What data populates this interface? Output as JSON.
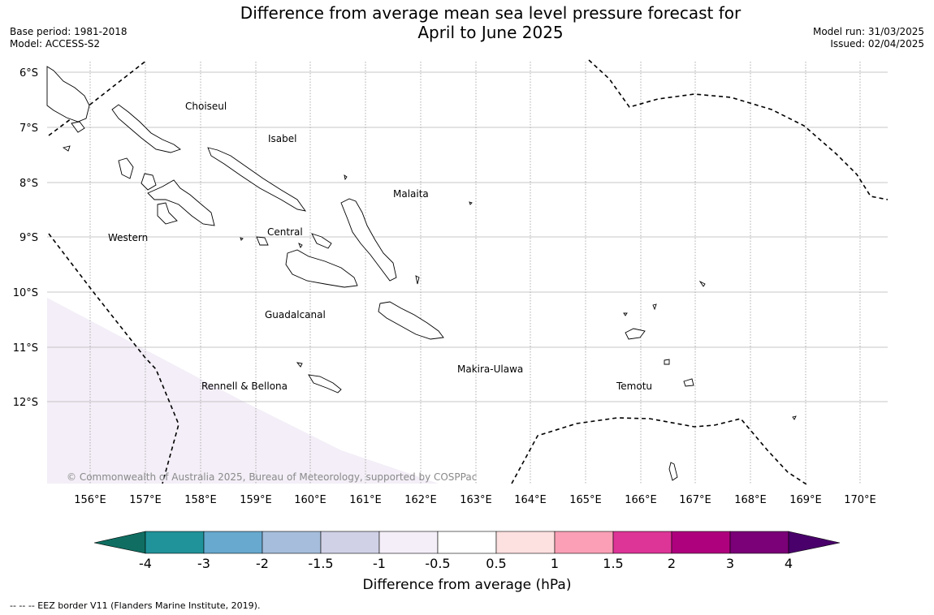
{
  "title_line1": "Difference from average mean sea level pressure forecast for",
  "title_line2": "April to June 2025",
  "base_period": "Base period: 1981-2018",
  "model": "Model: ACCESS-S2",
  "model_run": "Model run: 31/03/2025",
  "issued": "Issued: 02/04/2025",
  "copyright": "© Commonwealth of Australia 2025, Bureau of Meteorology, supported by COSPPac",
  "footnote": "-- -- -- EEZ border V11 (Flanders Marine Institute, 2019).",
  "map": {
    "lon_labels": [
      "156°E",
      "157°E",
      "158°E",
      "159°E",
      "160°E",
      "161°E",
      "162°E",
      "163°E",
      "164°E",
      "165°E",
      "166°E",
      "167°E",
      "168°E",
      "169°E",
      "170°E"
    ],
    "lat_labels": [
      "6°S",
      "7°S",
      "8°S",
      "9°S",
      "10°S",
      "11°S",
      "12°S"
    ],
    "region_labels": [
      {
        "name": "Choiseul",
        "lon": 158.1,
        "lat": -6.6
      },
      {
        "name": "Isabel",
        "lon": 159.25,
        "lat": -7.2
      },
      {
        "name": "Malaita",
        "lon": 161.5,
        "lat": -8.2
      },
      {
        "name": "Western",
        "lon": 156.3,
        "lat": -9.0
      },
      {
        "name": "Central",
        "lon": 159.2,
        "lat": -8.9
      },
      {
        "name": "Guadalcanal",
        "lon": 159.7,
        "lat": -10.4
      },
      {
        "name": "Makira-Ulawa",
        "lon": 163.2,
        "lat": -11.4
      },
      {
        "name": "Rennell & Bellona",
        "lon": 158.8,
        "lat": -11.7
      },
      {
        "name": "Temotu",
        "lon": 165.9,
        "lat": -11.7
      }
    ],
    "shaded_category": "-1 to -0.5",
    "shade_color": "#f3eef7"
  },
  "colorbar": {
    "label": "Difference from average (hPa)",
    "ticks": [
      "-4",
      "-3",
      "-2",
      "-1.5",
      "-1",
      "-0.5",
      "0.5",
      "1",
      "1.5",
      "2",
      "3",
      "4"
    ],
    "colors": [
      "#0f6e61",
      "#1f9399",
      "#67a9cf",
      "#a6bddb",
      "#d0d1e6",
      "#f3eef7",
      "#ffffff",
      "#fde0e0",
      "#fa9fb5",
      "#dd3497",
      "#ae017e",
      "#7a0177",
      "#49006a"
    ]
  }
}
